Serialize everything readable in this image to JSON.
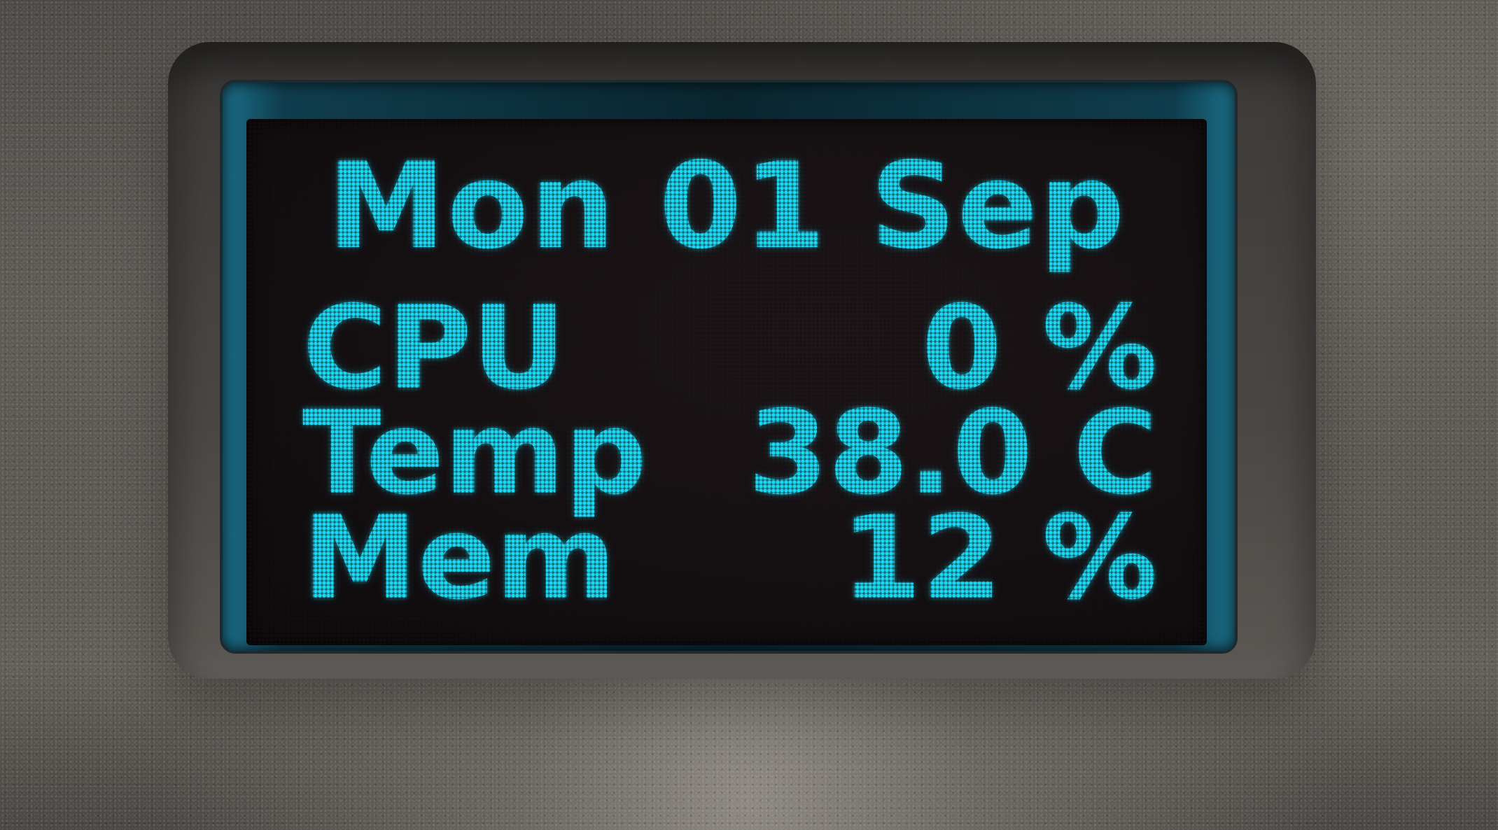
{
  "display": {
    "date": "Mon 01 Sep",
    "rows": [
      {
        "label": "CPU",
        "value": "0 %"
      },
      {
        "label": "Temp",
        "value": "38.0 C"
      },
      {
        "label": "Mem",
        "value": "12 %"
      }
    ]
  },
  "colors": {
    "oled_text": "#19d8f2",
    "screen_bg": "#140f11",
    "housing": "#56524e"
  }
}
